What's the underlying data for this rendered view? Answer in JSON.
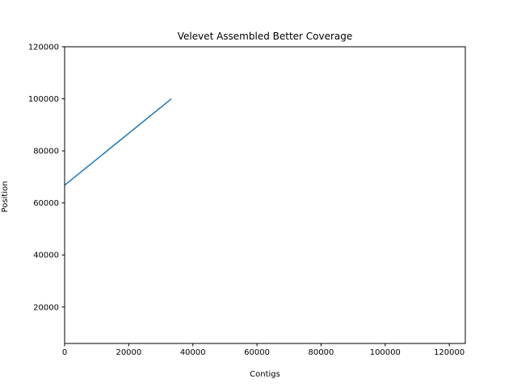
{
  "chart_data": {
    "type": "line",
    "title": "Velevet Assembled Better Coverage",
    "xlabel": "Contigs",
    "ylabel": "Position",
    "xlim": [
      0,
      125000
    ],
    "ylim": [
      6000,
      120000
    ],
    "x_ticks": [
      0,
      20000,
      40000,
      60000,
      80000,
      100000,
      120000
    ],
    "y_ticks": [
      20000,
      40000,
      60000,
      80000,
      100000,
      120000
    ],
    "grid": false,
    "series": [
      {
        "color": "#1f77b4",
        "points": [
          [
            0,
            66800
          ],
          [
            33300,
            100000
          ]
        ]
      }
    ]
  }
}
